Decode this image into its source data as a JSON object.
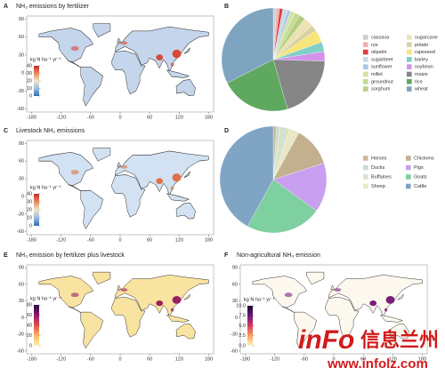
{
  "chart_data": [
    {
      "type": "map",
      "panel": "A",
      "title": "NH₃ emissions by fertilizer",
      "colorbar_title": "kg N ha⁻¹ yr⁻¹",
      "colorbar_lim": [
        0,
        40
      ],
      "colorbar_ticks": [
        0,
        10,
        20,
        30,
        40
      ],
      "colorscale": [
        "#2f6db3",
        "#9bbce0",
        "#f2e6c8",
        "#e78a5c",
        "#c92a2a"
      ],
      "color": "#c5d6ec",
      "hotspot_color": "#d84a3a",
      "xlim": [
        -190,
        190
      ],
      "xticks": [
        -180,
        -120,
        -60,
        0,
        60,
        120,
        180
      ],
      "ylim": [
        -65,
        95
      ],
      "yticks": [
        -60,
        -30,
        0,
        30,
        60,
        90
      ]
    },
    {
      "type": "pie",
      "panel": "B",
      "categories": [
        "cassava",
        "rye",
        "oilpalm",
        "sugarbeet",
        "sunflower",
        "millet",
        "groundnut",
        "sorghum",
        "sugarcane",
        "potato",
        "rapeseed",
        "barley",
        "soybean",
        "maize",
        "rice",
        "wheat"
      ],
      "values": [
        1,
        1,
        1,
        1.5,
        1,
        1.5,
        1.5,
        2,
        3,
        2,
        4,
        3,
        3,
        20,
        22,
        32.5
      ],
      "colors": [
        "#cfcfcf",
        "#f0b0b0",
        "#e03c3c",
        "#c7d9e6",
        "#a9c9e2",
        "#d3e3a6",
        "#c3da92",
        "#b5cf7e",
        "#ebe3b5",
        "#d9d1a1",
        "#f6e67a",
        "#7fd0c8",
        "#d393ea",
        "#858585",
        "#5fa860",
        "#7fa4c0"
      ]
    },
    {
      "type": "map",
      "panel": "C",
      "title": "Livestock NH₃ emissions",
      "colorbar_title": "kg N ha⁻¹ yr⁻¹",
      "colorbar_lim": [
        0,
        40
      ],
      "colorbar_ticks": [
        0,
        10,
        20,
        30,
        40
      ],
      "colorscale": [
        "#2f6db3",
        "#9bbce0",
        "#f2e6c8",
        "#e78a5c",
        "#c92a2a"
      ],
      "color": "#d2e2f2",
      "hotspot_color": "#e0704a",
      "xlim": [
        -190,
        190
      ],
      "xticks": [
        -180,
        -120,
        -60,
        0,
        60,
        120,
        180
      ],
      "ylim": [
        -65,
        95
      ],
      "yticks": [
        -60,
        -30,
        0,
        30,
        60,
        90
      ]
    },
    {
      "type": "pie",
      "panel": "D",
      "categories": [
        "Horses",
        "Ducks",
        "Buffaloes",
        "Sheep",
        "Chickens",
        "Pigs",
        "Goats",
        "Cattle"
      ],
      "values": [
        1,
        1,
        3,
        3,
        12,
        15,
        23,
        42
      ],
      "colors": [
        "#c9b898",
        "#c8dcd0",
        "#d6e2cc",
        "#e9e8c6",
        "#c2b08e",
        "#c99ff0",
        "#7ed0a0",
        "#80a4c4"
      ]
    },
    {
      "type": "map",
      "panel": "E",
      "title": "NH₃ emission by fertilizer plus livestock",
      "colorbar_title": "kg N ha⁻¹ yr⁻¹",
      "colorbar_lim": [
        0,
        80
      ],
      "colorbar_ticks": [
        0,
        20,
        40,
        60,
        80
      ],
      "colorscale": [
        "#fdf3b0",
        "#f9b564",
        "#e0504a",
        "#8a1c6c",
        "#2a0a40"
      ],
      "color": "#f9e3a0",
      "hotspot_color": "#9a2060",
      "xlim": [
        -190,
        190
      ],
      "xticks": [
        -180,
        -120,
        -60,
        0,
        60,
        120,
        180
      ],
      "ylim": [
        -65,
        95
      ],
      "yticks": [
        -60,
        -30,
        0,
        30,
        60,
        90
      ]
    },
    {
      "type": "map",
      "panel": "F",
      "title": "Non-agricultural NH₃ emission",
      "colorbar_title": "kg N ha⁻¹ yr⁻¹",
      "colorbar_lim": [
        0,
        10
      ],
      "colorbar_ticks": [
        {
          "value": 0,
          "label": "0.0"
        },
        {
          "value": 2.5,
          "label": "2.5"
        },
        {
          "value": 5,
          "label": "5.0"
        },
        {
          "value": 7.5,
          "label": "7.5"
        },
        {
          "value": 10,
          "label": "10.0"
        }
      ],
      "colorscale": [
        "#fdf6c0",
        "#f9a05a",
        "#d83c5c",
        "#6a1a78",
        "#1a0830"
      ],
      "color": "#fdf8ee",
      "hotspot_color": "#7a1f7a",
      "xlim": [
        -190,
        190
      ],
      "xticks": [
        -180,
        -120,
        -60,
        0,
        60,
        120,
        180
      ],
      "ylim": [
        -65,
        95
      ],
      "yticks": [
        -60,
        -30,
        0,
        30,
        60,
        90
      ]
    }
  ],
  "watermark": {
    "logo": "inFo",
    "name": "信息兰州",
    "url": "www.infolz.com"
  }
}
